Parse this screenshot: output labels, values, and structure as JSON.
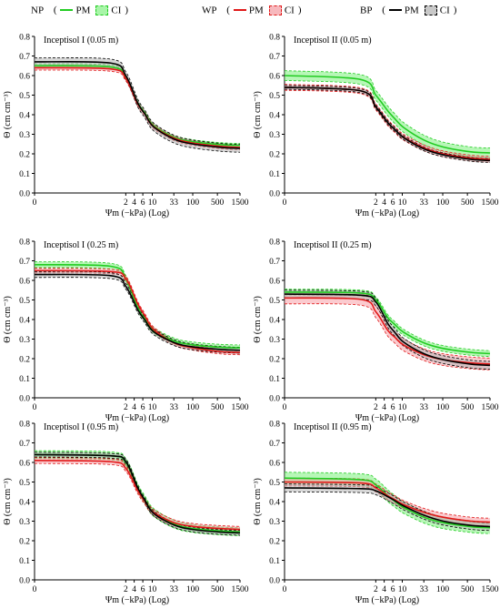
{
  "legend": {
    "groups": [
      {
        "code": "NP",
        "color": "#22cc22",
        "fill": "#7cf07c",
        "pm": "PM",
        "ci": "CI"
      },
      {
        "code": "WP",
        "color": "#e01818",
        "fill": "#f7a0a8",
        "pm": "PM",
        "ci": "CI"
      },
      {
        "code": "BP",
        "color": "#000000",
        "fill": "#b8b8b8",
        "pm": "PM",
        "ci": "CI"
      }
    ]
  },
  "chart_data": [
    {
      "type": "line",
      "title": "Inceptisol I (0.05 m)",
      "xlabel": "Ψm (−kPa) (Log)",
      "ylabel": "Θ (cm cm⁻³)",
      "xticks": [
        "0",
        "2",
        "4",
        "6",
        "10",
        "33",
        "100",
        "500",
        "1500"
      ],
      "yticks": [
        "0.0",
        "0.1",
        "0.2",
        "0.3",
        "0.4",
        "0.5",
        "0.6",
        "0.7",
        "0.8"
      ],
      "ylim": [
        0,
        0.8
      ],
      "x": [
        0,
        1,
        2,
        4,
        6,
        10,
        33,
        100,
        500,
        1500
      ],
      "series": [
        {
          "name": "NP",
          "values": [
            0.65,
            0.644,
            0.59,
            0.46,
            0.41,
            0.345,
            0.285,
            0.262,
            0.247,
            0.243
          ],
          "ci": 0.01
        },
        {
          "name": "WP",
          "values": [
            0.64,
            0.634,
            0.585,
            0.455,
            0.405,
            0.34,
            0.28,
            0.255,
            0.238,
            0.233
          ],
          "ci": 0.012
        },
        {
          "name": "BP",
          "values": [
            0.67,
            0.664,
            0.6,
            0.46,
            0.405,
            0.338,
            0.275,
            0.25,
            0.233,
            0.228
          ],
          "ci": 0.02
        }
      ]
    },
    {
      "type": "line",
      "title": "Inceptisol II (0.05 m)",
      "xlabel": "Ψm (−kPa) (Log)",
      "ylabel": "Θ (cm cm⁻³)",
      "xticks": [
        "0",
        "2",
        "4",
        "6",
        "10",
        "33",
        "100",
        "500",
        "1500"
      ],
      "yticks": [
        "0.0",
        "0.1",
        "0.2",
        "0.3",
        "0.4",
        "0.5",
        "0.6",
        "0.7",
        "0.8"
      ],
      "ylim": [
        0,
        0.8
      ],
      "x": [
        0,
        1,
        2,
        4,
        6,
        10,
        33,
        100,
        500,
        1500
      ],
      "series": [
        {
          "name": "NP",
          "values": [
            0.6,
            0.58,
            0.5,
            0.42,
            0.38,
            0.335,
            0.27,
            0.235,
            0.21,
            0.205
          ],
          "ci": 0.025
        },
        {
          "name": "WP",
          "values": [
            0.54,
            0.522,
            0.44,
            0.36,
            0.325,
            0.285,
            0.23,
            0.2,
            0.178,
            0.172
          ],
          "ci": 0.015
        },
        {
          "name": "BP",
          "values": [
            0.54,
            0.522,
            0.44,
            0.36,
            0.325,
            0.283,
            0.225,
            0.195,
            0.172,
            0.166
          ],
          "ci": 0.01
        }
      ]
    },
    {
      "type": "line",
      "title": "Inceptisol I (0.25 m)",
      "xlabel": "Ψm (−kPa) (Log)",
      "ylabel": "Θ (cm cm⁻³)",
      "xticks": [
        "0",
        "2",
        "4",
        "6",
        "10",
        "33",
        "100",
        "500",
        "1500"
      ],
      "yticks": [
        "0.0",
        "0.1",
        "0.2",
        "0.3",
        "0.4",
        "0.5",
        "0.6",
        "0.7",
        "0.8"
      ],
      "ylim": [
        0,
        0.8
      ],
      "x": [
        0,
        1,
        2,
        4,
        6,
        10,
        33,
        100,
        500,
        1500
      ],
      "series": [
        {
          "name": "NP",
          "values": [
            0.68,
            0.672,
            0.61,
            0.46,
            0.405,
            0.345,
            0.29,
            0.27,
            0.258,
            0.255
          ],
          "ci": 0.015
        },
        {
          "name": "WP",
          "values": [
            0.65,
            0.645,
            0.61,
            0.48,
            0.42,
            0.35,
            0.28,
            0.255,
            0.236,
            0.232
          ],
          "ci": 0.012
        },
        {
          "name": "BP",
          "values": [
            0.63,
            0.624,
            0.57,
            0.45,
            0.398,
            0.338,
            0.282,
            0.26,
            0.247,
            0.243
          ],
          "ci": 0.015
        }
      ]
    },
    {
      "type": "line",
      "title": "Inceptisol II (0.25 m)",
      "xlabel": "Ψm (−kPa) (Log)",
      "ylabel": "Θ (cm cm⁻³)",
      "xticks": [
        "0",
        "2",
        "4",
        "6",
        "10",
        "33",
        "100",
        "500",
        "1500"
      ],
      "yticks": [
        "0.0",
        "0.1",
        "0.2",
        "0.3",
        "0.4",
        "0.5",
        "0.6",
        "0.7",
        "0.8"
      ],
      "ylim": [
        0,
        0.8
      ],
      "x": [
        0,
        1,
        2,
        4,
        6,
        10,
        33,
        100,
        500,
        1500
      ],
      "series": [
        {
          "name": "NP",
          "values": [
            0.54,
            0.535,
            0.5,
            0.41,
            0.375,
            0.335,
            0.28,
            0.252,
            0.232,
            0.226
          ],
          "ci": 0.015
        },
        {
          "name": "WP",
          "values": [
            0.51,
            0.503,
            0.44,
            0.345,
            0.31,
            0.27,
            0.22,
            0.195,
            0.178,
            0.173
          ],
          "ci": 0.03
        },
        {
          "name": "BP",
          "values": [
            0.53,
            0.524,
            0.49,
            0.38,
            0.335,
            0.285,
            0.225,
            0.195,
            0.172,
            0.166
          ],
          "ci": 0.02
        }
      ]
    },
    {
      "type": "line",
      "title": "Inceptisol I (0.95 m)",
      "xlabel": "Ψm (−kPa) (Log)",
      "ylabel": "Θ (cm cm⁻³)",
      "xticks": [
        "0",
        "2",
        "4",
        "6",
        "10",
        "33",
        "100",
        "500",
        "1500"
      ],
      "yticks": [
        "0.0",
        "0.1",
        "0.2",
        "0.3",
        "0.4",
        "0.5",
        "0.6",
        "0.7",
        "0.8"
      ],
      "ylim": [
        0,
        0.8
      ],
      "x": [
        0,
        1,
        2,
        4,
        6,
        10,
        33,
        100,
        500,
        1500
      ],
      "series": [
        {
          "name": "NP",
          "values": [
            0.64,
            0.634,
            0.6,
            0.47,
            0.41,
            0.345,
            0.285,
            0.262,
            0.25,
            0.246
          ],
          "ci": 0.02
        },
        {
          "name": "WP",
          "values": [
            0.61,
            0.604,
            0.57,
            0.455,
            0.402,
            0.345,
            0.292,
            0.273,
            0.262,
            0.258
          ],
          "ci": 0.015
        },
        {
          "name": "BP",
          "values": [
            0.64,
            0.634,
            0.605,
            0.47,
            0.408,
            0.34,
            0.28,
            0.257,
            0.244,
            0.24
          ],
          "ci": 0.012
        }
      ]
    },
    {
      "type": "line",
      "title": "Inceptisol II (0.95 m)",
      "xlabel": "Ψm (−kPa) (Log)",
      "ylabel": "Θ (cm cm⁻³)",
      "xticks": [
        "0",
        "2",
        "4",
        "6",
        "10",
        "33",
        "100",
        "500",
        "1500"
      ],
      "yticks": [
        "0.0",
        "0.1",
        "0.2",
        "0.3",
        "0.4",
        "0.5",
        "0.6",
        "0.7",
        "0.8"
      ],
      "ylim": [
        0,
        0.8
      ],
      "x": [
        0,
        1,
        2,
        4,
        6,
        10,
        33,
        100,
        500,
        1500
      ],
      "series": [
        {
          "name": "NP",
          "values": [
            0.52,
            0.512,
            0.485,
            0.43,
            0.402,
            0.37,
            0.32,
            0.292,
            0.272,
            0.266
          ],
          "ci": 0.03
        },
        {
          "name": "WP",
          "values": [
            0.5,
            0.495,
            0.47,
            0.43,
            0.41,
            0.385,
            0.345,
            0.32,
            0.3,
            0.295
          ],
          "ci": 0.02
        },
        {
          "name": "BP",
          "values": [
            0.47,
            0.466,
            0.455,
            0.425,
            0.405,
            0.378,
            0.33,
            0.3,
            0.278,
            0.272
          ],
          "ci": 0.02
        }
      ]
    }
  ]
}
